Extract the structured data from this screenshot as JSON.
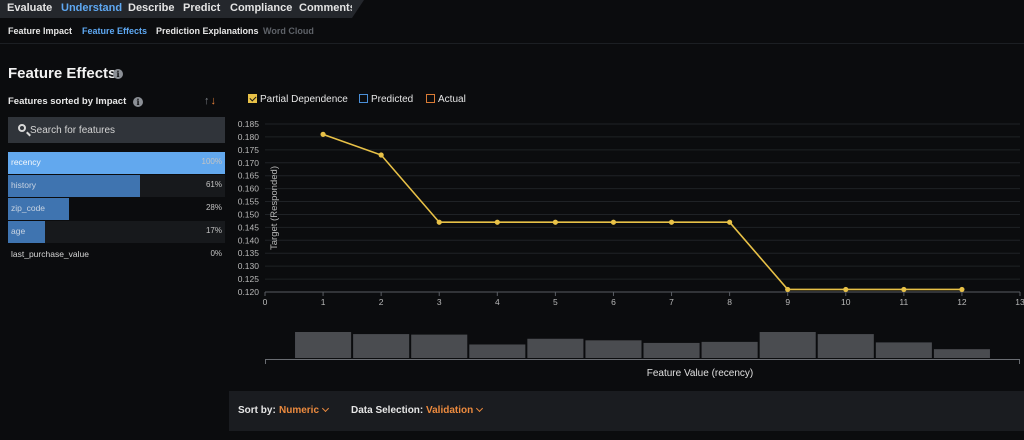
{
  "top_tabs": [
    "Evaluate",
    "Understand",
    "Describe",
    "Predict",
    "Compliance",
    "Comments"
  ],
  "sub_tabs": [
    "Feature Impact",
    "Feature Effects",
    "Prediction Explanations",
    "Word Cloud"
  ],
  "title": "Feature Effects",
  "features_heading": "Features sorted by Impact",
  "search": {
    "placeholder": "Search for features"
  },
  "features": [
    {
      "name": "recency",
      "impact": 1.0,
      "pct": "100%"
    },
    {
      "name": "history",
      "impact": 0.61,
      "pct": "61%"
    },
    {
      "name": "zip_code",
      "impact": 0.28,
      "pct": "28%"
    },
    {
      "name": "age",
      "impact": 0.17,
      "pct": "17%"
    },
    {
      "name": "last_purchase_value",
      "impact": 0.0,
      "pct": "0%"
    }
  ],
  "legend": {
    "partial_dependence": "Partial Dependence",
    "predicted": "Predicted",
    "actual": "Actual"
  },
  "colors": {
    "accent": "#5ea8f2",
    "partial_dependence": "#e8c147",
    "predicted": "#4a8fd8",
    "actual": "#d97b35",
    "orange": "#ec8a3e"
  },
  "footer": {
    "sort_label": "Sort by:",
    "sort_value": "Numeric",
    "data_label": "Data Selection:",
    "data_value": "Validation"
  },
  "chart_data": {
    "type": "line",
    "ylabel": "Target (Responded)",
    "xlabel": "Feature Value (recency)",
    "xlim": [
      0,
      13
    ],
    "ylim": [
      0.12,
      0.185
    ],
    "x_ticks": [
      "0",
      "1",
      "2",
      "3",
      "4",
      "5",
      "6",
      "7",
      "8",
      "9",
      "10",
      "11",
      "12",
      "13"
    ],
    "y_ticks": [
      "0.120",
      "0.125",
      "0.130",
      "0.135",
      "0.140",
      "0.145",
      "0.150",
      "0.155",
      "0.160",
      "0.165",
      "0.170",
      "0.175",
      "0.180",
      "0.185"
    ],
    "grid": true,
    "series": [
      {
        "name": "Partial Dependence",
        "x": [
          1,
          2,
          3,
          4,
          5,
          6,
          7,
          8,
          9,
          10,
          11,
          12
        ],
        "y": [
          0.181,
          0.173,
          0.147,
          0.147,
          0.147,
          0.147,
          0.147,
          0.147,
          0.121,
          0.121,
          0.121,
          0.121
        ]
      }
    ],
    "histogram": {
      "bins": [
        [
          0.5,
          1.5
        ],
        [
          1.5,
          2.5
        ],
        [
          2.5,
          3.5
        ],
        [
          3.5,
          4.5
        ],
        [
          4.5,
          5.5
        ],
        [
          5.5,
          6.5
        ],
        [
          6.5,
          7.5
        ],
        [
          7.5,
          8.5
        ],
        [
          8.5,
          9.5
        ],
        [
          9.5,
          10.5
        ],
        [
          10.5,
          11.5
        ],
        [
          11.5,
          12.5
        ]
      ],
      "relative_counts": [
        1.0,
        0.92,
        0.9,
        0.52,
        0.74,
        0.68,
        0.58,
        0.62,
        1.0,
        0.92,
        0.6,
        0.34
      ]
    }
  }
}
